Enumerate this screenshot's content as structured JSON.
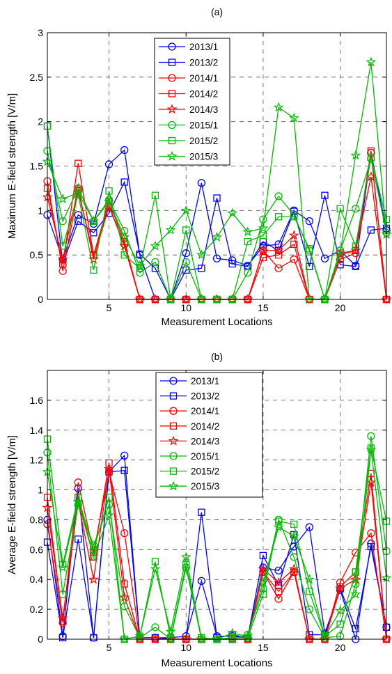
{
  "chart_data": [
    {
      "type": "line",
      "title": "(a)",
      "xlabel": "Measurement Locations",
      "ylabel": "Maximum E-field strength [V/m]",
      "xlim": [
        1,
        23
      ],
      "ylim": [
        0,
        3
      ],
      "xticks": [
        5,
        10,
        15,
        20
      ],
      "yticks": [
        0,
        0.5,
        1,
        1.5,
        2,
        2.5,
        3
      ],
      "ytick_labels": [
        "0",
        "0.5",
        "1",
        "1.5",
        "2",
        "2.5",
        "3"
      ],
      "grid": "dashed vertical and horizontal",
      "legend_position": "top-center",
      "x": [
        1,
        2,
        3,
        4,
        5,
        6,
        7,
        8,
        9,
        10,
        11,
        12,
        13,
        14,
        15,
        16,
        17,
        18,
        19,
        20,
        21,
        22,
        23
      ],
      "series": [
        {
          "name": "2013/1",
          "color": "#0000ff",
          "marker": "circle",
          "values": [
            0.95,
            0.45,
            0.95,
            0.85,
            1.52,
            1.68,
            0.5,
            0.0,
            0.0,
            0.52,
            1.31,
            0.46,
            0.44,
            0.38,
            0.6,
            0.62,
            1.0,
            0.88,
            0.46,
            0.55,
            0.38,
            1.65,
            0.78
          ]
        },
        {
          "name": "2013/2",
          "color": "#0000ff",
          "marker": "square",
          "values": [
            1.95,
            0.4,
            0.88,
            0.75,
            0.97,
            1.32,
            0.51,
            0.35,
            0.0,
            0.33,
            0.35,
            1.14,
            0.4,
            0.37,
            0.65,
            0.55,
            0.99,
            0.37,
            1.17,
            0.39,
            0.37,
            0.78,
            0.8
          ]
        },
        {
          "name": "2014/1",
          "color": "#ff0000",
          "marker": "circle",
          "values": [
            1.33,
            0.32,
            1.22,
            0.5,
            1.05,
            0.62,
            0.0,
            0.0,
            0.0,
            0.0,
            0.0,
            0.0,
            0.0,
            0.0,
            0.55,
            0.35,
            0.45,
            0.0,
            0.0,
            0.45,
            0.52,
            1.65,
            0.0
          ]
        },
        {
          "name": "2014/2",
          "color": "#ff0000",
          "marker": "square",
          "values": [
            1.25,
            0.4,
            1.53,
            0.5,
            1.1,
            0.65,
            0.0,
            0.0,
            0.0,
            0.0,
            0.0,
            0.0,
            0.0,
            0.0,
            0.47,
            0.5,
            0.62,
            0.0,
            0.0,
            0.52,
            0.55,
            1.67,
            0.0
          ]
        },
        {
          "name": "2014/3",
          "color": "#ff0000",
          "marker": "star",
          "values": [
            1.15,
            0.45,
            1.25,
            0.45,
            1.05,
            0.6,
            0.0,
            0.0,
            0.0,
            0.0,
            0.0,
            0.0,
            0.0,
            0.0,
            0.55,
            0.55,
            0.72,
            0.0,
            0.0,
            0.5,
            0.55,
            1.38,
            0.0
          ]
        },
        {
          "name": "2015/1",
          "color": "#00bb00",
          "marker": "circle",
          "values": [
            1.67,
            0.88,
            1.25,
            0.88,
            1.12,
            0.77,
            0.3,
            0.42,
            0.0,
            0.42,
            0.0,
            0.0,
            0.0,
            0.3,
            0.9,
            1.16,
            0.95,
            0.55,
            0.0,
            0.55,
            1.02,
            1.58,
            0.75
          ]
        },
        {
          "name": "2015/2",
          "color": "#00bb00",
          "marker": "square",
          "values": [
            1.95,
            0.6,
            1.18,
            0.33,
            1.22,
            0.5,
            0.35,
            1.17,
            0.0,
            0.78,
            0.0,
            0.0,
            0.0,
            0.65,
            0.72,
            0.93,
            0.93,
            0.57,
            0.0,
            1.02,
            0.6,
            1.6,
            0.9
          ]
        },
        {
          "name": "2015/3",
          "color": "#00bb00",
          "marker": "star",
          "values": [
            1.55,
            1.13,
            1.2,
            0.88,
            1.1,
            0.7,
            0.38,
            0.6,
            0.78,
            1.0,
            0.5,
            0.7,
            0.97,
            0.76,
            0.8,
            2.16,
            2.04,
            0.0,
            0.0,
            0.52,
            1.62,
            2.67,
            0.73
          ]
        }
      ]
    },
    {
      "type": "line",
      "title": "(b)",
      "xlabel": "Measurement Locations",
      "ylabel": "Average E-field strength [V/m]",
      "xlim": [
        1,
        23
      ],
      "ylim": [
        0,
        1.8
      ],
      "xticks": [
        5,
        10,
        15,
        20
      ],
      "yticks": [
        0,
        0.2,
        0.4,
        0.6,
        0.8,
        1,
        1.2,
        1.4,
        1.6
      ],
      "ytick_labels": [
        "0",
        "0.2",
        "0.4",
        "0.6",
        "0.8",
        "1",
        "1.2",
        "1.4",
        "1.6"
      ],
      "grid": "dashed vertical and horizontal",
      "legend_position": "top-center",
      "x": [
        1,
        2,
        3,
        4,
        5,
        6,
        7,
        8,
        9,
        10,
        11,
        12,
        13,
        14,
        15,
        16,
        17,
        18,
        19,
        20,
        21,
        22,
        23
      ],
      "series": [
        {
          "name": "2013/1",
          "color": "#0000ff",
          "marker": "circle",
          "values": [
            0.8,
            0.02,
            1.01,
            0.01,
            1.12,
            1.23,
            0.01,
            0.01,
            0.01,
            0.02,
            0.39,
            0.02,
            0.02,
            0.01,
            0.48,
            0.46,
            0.62,
            0.75,
            0.04,
            0.33,
            0.0,
            0.64,
            0.08
          ]
        },
        {
          "name": "2013/2",
          "color": "#0000ff",
          "marker": "square",
          "values": [
            0.65,
            0.01,
            0.67,
            0.01,
            1.12,
            1.13,
            0.01,
            0.01,
            0.0,
            0.0,
            0.85,
            0.01,
            0.03,
            0.01,
            0.56,
            0.36,
            0.7,
            0.03,
            0.03,
            0.34,
            0.07,
            0.62,
            0.08
          ]
        },
        {
          "name": "2014/1",
          "color": "#ff0000",
          "marker": "circle",
          "values": [
            0.77,
            0.11,
            1.05,
            0.58,
            1.12,
            0.71,
            0.0,
            0.0,
            0.0,
            0.0,
            0.0,
            0.0,
            0.0,
            0.0,
            0.45,
            0.27,
            0.45,
            0.0,
            0.0,
            0.38,
            0.58,
            0.71,
            0.0
          ]
        },
        {
          "name": "2014/2",
          "color": "#ff0000",
          "marker": "square",
          "values": [
            0.95,
            0.12,
            0.95,
            0.55,
            1.18,
            0.37,
            0.0,
            0.0,
            0.0,
            0.0,
            0.0,
            0.0,
            0.0,
            0.0,
            0.45,
            0.32,
            0.45,
            0.0,
            0.0,
            0.35,
            0.45,
            1.11,
            0.0
          ]
        },
        {
          "name": "2014/3",
          "color": "#ff0000",
          "marker": "star",
          "values": [
            0.88,
            0.14,
            0.92,
            0.4,
            1.14,
            0.28,
            0.0,
            0.0,
            0.0,
            0.0,
            0.0,
            0.0,
            0.0,
            0.0,
            0.47,
            0.38,
            0.47,
            0.0,
            0.0,
            0.34,
            0.4,
            1.05,
            0.0
          ]
        },
        {
          "name": "2015/1",
          "color": "#00bb00",
          "marker": "circle",
          "values": [
            1.25,
            0.3,
            0.9,
            0.63,
            0.9,
            0.22,
            0.01,
            0.08,
            0.0,
            0.48,
            0.0,
            0.0,
            0.0,
            0.03,
            0.34,
            0.8,
            0.55,
            0.2,
            0.01,
            0.02,
            0.37,
            1.36,
            0.59
          ]
        },
        {
          "name": "2015/2",
          "color": "#00bb00",
          "marker": "square",
          "values": [
            1.34,
            0.5,
            0.95,
            0.6,
            0.95,
            0.0,
            0.02,
            0.52,
            0.01,
            0.5,
            0.01,
            0.0,
            0.01,
            0.01,
            0.3,
            0.79,
            0.77,
            0.32,
            0.02,
            0.1,
            0.45,
            1.28,
            0.79
          ]
        },
        {
          "name": "2015/3",
          "color": "#00bb00",
          "marker": "star",
          "values": [
            1.12,
            0.48,
            0.92,
            0.55,
            0.83,
            0.0,
            0.02,
            0.47,
            0.05,
            0.55,
            0.0,
            0.0,
            0.04,
            0.02,
            0.38,
            0.75,
            0.69,
            0.4,
            0.02,
            0.19,
            0.3,
            1.27,
            0.41
          ]
        }
      ]
    }
  ]
}
